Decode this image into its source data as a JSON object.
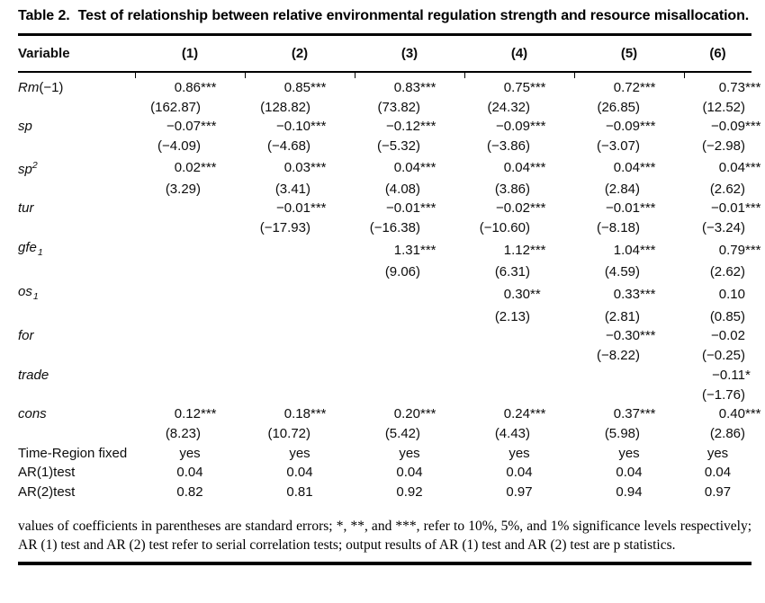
{
  "title": {
    "label": "Table 2.",
    "text": "Test of relationship between relative environmental regulation strength and resource misallocation."
  },
  "table": {
    "header": [
      "Variable",
      "(1)",
      "(2)",
      "(3)",
      "(4)",
      "(5)",
      "(6)"
    ],
    "coef_rows": [
      {
        "label": {
          "base": "Rm",
          "rest": "(−1)",
          "italic": true
        },
        "coefs": [
          "0.86***",
          "0.85***",
          "0.83***",
          "0.75***",
          "0.72***",
          "0.73***"
        ],
        "tstats": [
          "(162.87)",
          "(128.82)",
          "(73.82)",
          "(24.32)",
          "(26.85)",
          "(12.52)"
        ]
      },
      {
        "label": {
          "base": "sp",
          "italic": true
        },
        "coefs": [
          "−0.07***",
          "−0.10***",
          "−0.12***",
          "−0.09***",
          "−0.09***",
          "−0.09***"
        ],
        "tstats": [
          "(−4.09)",
          "(−4.68)",
          "(−5.32)",
          "(−3.86)",
          "(−3.07)",
          "(−2.98)"
        ]
      },
      {
        "label": {
          "base": "sp",
          "sup": "2",
          "italic": true
        },
        "coefs": [
          "0.02***",
          "0.03***",
          "0.04***",
          "0.04***",
          "0.04***",
          "0.04***"
        ],
        "tstats": [
          "(3.29)",
          "(3.41)",
          "(4.08)",
          "(3.86)",
          "(2.84)",
          "(2.62)"
        ]
      },
      {
        "label": {
          "base": "tur",
          "italic": true
        },
        "coefs": [
          "",
          "−0.01***",
          "−0.01***",
          "−0.02***",
          "−0.01***",
          "−0.01***"
        ],
        "tstats": [
          "",
          "(−17.93)",
          "(−16.38)",
          "(−10.60)",
          "(−8.18)",
          "(−3.24)"
        ]
      },
      {
        "label": {
          "base": "gfe",
          "sub": "1",
          "italic": true
        },
        "coefs": [
          "",
          "",
          "1.31***",
          "1.12***",
          "1.04***",
          "0.79***"
        ],
        "tstats": [
          "",
          "",
          "(9.06)",
          "(6.31)",
          "(4.59)",
          "(2.62)"
        ]
      },
      {
        "label": {
          "base": "os",
          "sub": "1",
          "italic": true
        },
        "coefs": [
          "",
          "",
          "",
          "0.30**",
          "0.33***",
          "0.10"
        ],
        "tstats": [
          "",
          "",
          "",
          "(2.13)",
          "(2.81)",
          "(0.85)"
        ]
      },
      {
        "label": {
          "base": "for",
          "italic": true
        },
        "coefs": [
          "",
          "",
          "",
          "",
          "−0.30***",
          "−0.02"
        ],
        "tstats": [
          "",
          "",
          "",
          "",
          "(−8.22)",
          "(−0.25)"
        ]
      },
      {
        "label": {
          "base": "trade",
          "italic": true
        },
        "coefs": [
          "",
          "",
          "",
          "",
          "",
          "−0.11*"
        ],
        "tstats": [
          "",
          "",
          "",
          "",
          "",
          "(−1.76)"
        ]
      },
      {
        "label": {
          "base": "cons",
          "italic": true
        },
        "coefs": [
          "0.12***",
          "0.18***",
          "0.20***",
          "0.24***",
          "0.37***",
          "0.40***"
        ],
        "tstats": [
          "(8.23)",
          "(10.72)",
          "(5.42)",
          "(4.43)",
          "(5.98)",
          "(2.86)"
        ]
      }
    ],
    "info_rows": [
      {
        "label": "Time-Region fixed",
        "values": [
          "yes",
          "yes",
          "yes",
          "yes",
          "yes",
          "yes"
        ]
      },
      {
        "label": "AR(1)test",
        "values": [
          "0.04",
          "0.04",
          "0.04",
          "0.04",
          "0.04",
          "0.04"
        ]
      },
      {
        "label": "AR(2)test",
        "values": [
          "0.82",
          "0.81",
          "0.92",
          "0.97",
          "0.94",
          "0.97"
        ]
      }
    ]
  },
  "footnote": "values of coefficients in parentheses are standard errors; *, **, and ***, refer to 10%, 5%, and 1% significance levels respectively; AR (1) test and AR (2) test refer to serial correlation tests; output results of AR (1) test and AR (2) test are p statistics."
}
